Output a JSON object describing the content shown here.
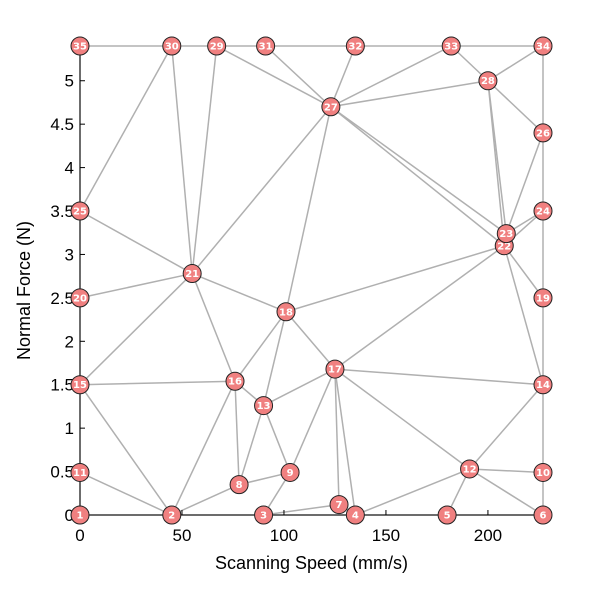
{
  "chart_data": {
    "type": "scatter",
    "title": "",
    "xlabel": "Scanning Speed (mm/s)",
    "ylabel": "Normal Force (N)",
    "xlim": [
      0,
      227
    ],
    "ylim": [
      0,
      5.4
    ],
    "xticks": [
      0,
      50,
      100,
      150,
      200
    ],
    "yticks": [
      0,
      0.5,
      1,
      1.5,
      2,
      2.5,
      3,
      3.5,
      4,
      4.5,
      5
    ],
    "xtick_labels": [
      "0",
      "50",
      "100",
      "150",
      "200"
    ],
    "ytick_labels": [
      "0",
      "0.5",
      "1",
      "1.5",
      "2",
      "2.5",
      "3",
      "3.5",
      "4",
      "4.5",
      "5"
    ],
    "grid": false,
    "node_color": "#f08080",
    "edge_color": "#b0b0b0",
    "nodes": [
      {
        "id": "1",
        "x": 0,
        "y": 0
      },
      {
        "id": "2",
        "x": 45,
        "y": 0
      },
      {
        "id": "3",
        "x": 90,
        "y": 0
      },
      {
        "id": "4",
        "x": 135,
        "y": 0
      },
      {
        "id": "5",
        "x": 180,
        "y": 0
      },
      {
        "id": "6",
        "x": 227,
        "y": 0
      },
      {
        "id": "7",
        "x": 127,
        "y": 0.12
      },
      {
        "id": "8",
        "x": 78,
        "y": 0.35
      },
      {
        "id": "9",
        "x": 103,
        "y": 0.49
      },
      {
        "id": "10",
        "x": 227,
        "y": 0.49
      },
      {
        "id": "11",
        "x": 0,
        "y": 0.49
      },
      {
        "id": "12",
        "x": 191,
        "y": 0.53
      },
      {
        "id": "13",
        "x": 90,
        "y": 1.26
      },
      {
        "id": "14",
        "x": 227,
        "y": 1.5
      },
      {
        "id": "15",
        "x": 0,
        "y": 1.5
      },
      {
        "id": "16",
        "x": 76,
        "y": 1.54
      },
      {
        "id": "17",
        "x": 125,
        "y": 1.68
      },
      {
        "id": "18",
        "x": 101,
        "y": 2.34
      },
      {
        "id": "19",
        "x": 227,
        "y": 2.5
      },
      {
        "id": "20",
        "x": 0,
        "y": 2.5
      },
      {
        "id": "21",
        "x": 55,
        "y": 2.78
      },
      {
        "id": "22",
        "x": 208,
        "y": 3.1
      },
      {
        "id": "23",
        "x": 209,
        "y": 3.24
      },
      {
        "id": "24",
        "x": 227,
        "y": 3.5
      },
      {
        "id": "25",
        "x": 0,
        "y": 3.5
      },
      {
        "id": "26",
        "x": 227,
        "y": 4.4
      },
      {
        "id": "27",
        "x": 123,
        "y": 4.7
      },
      {
        "id": "28",
        "x": 200,
        "y": 5.0
      },
      {
        "id": "29",
        "x": 67,
        "y": 5.4
      },
      {
        "id": "30",
        "x": 45,
        "y": 5.4
      },
      {
        "id": "31",
        "x": 91,
        "y": 5.4
      },
      {
        "id": "32",
        "x": 135,
        "y": 5.4
      },
      {
        "id": "33",
        "x": 182,
        "y": 5.4
      },
      {
        "id": "34",
        "x": 227,
        "y": 5.4
      },
      {
        "id": "35",
        "x": 0,
        "y": 5.4
      }
    ],
    "edges": [
      [
        "1",
        "2"
      ],
      [
        "2",
        "3"
      ],
      [
        "3",
        "4"
      ],
      [
        "4",
        "5"
      ],
      [
        "5",
        "6"
      ],
      [
        "1",
        "11"
      ],
      [
        "11",
        "15"
      ],
      [
        "15",
        "20"
      ],
      [
        "20",
        "25"
      ],
      [
        "25",
        "35"
      ],
      [
        "6",
        "10"
      ],
      [
        "10",
        "14"
      ],
      [
        "14",
        "19"
      ],
      [
        "19",
        "24"
      ],
      [
        "24",
        "26"
      ],
      [
        "26",
        "34"
      ],
      [
        "35",
        "30"
      ],
      [
        "30",
        "29"
      ],
      [
        "29",
        "31"
      ],
      [
        "31",
        "32"
      ],
      [
        "32",
        "33"
      ],
      [
        "33",
        "34"
      ],
      [
        "11",
        "2"
      ],
      [
        "15",
        "2"
      ],
      [
        "2",
        "8"
      ],
      [
        "2",
        "16"
      ],
      [
        "8",
        "9"
      ],
      [
        "9",
        "3"
      ],
      [
        "3",
        "7"
      ],
      [
        "7",
        "4"
      ],
      [
        "4",
        "12"
      ],
      [
        "12",
        "5"
      ],
      [
        "12",
        "6"
      ],
      [
        "12",
        "10"
      ],
      [
        "12",
        "14"
      ],
      [
        "12",
        "17"
      ],
      [
        "9",
        "13"
      ],
      [
        "9",
        "17"
      ],
      [
        "8",
        "13"
      ],
      [
        "8",
        "16"
      ],
      [
        "13",
        "16"
      ],
      [
        "13",
        "18"
      ],
      [
        "13",
        "17"
      ],
      [
        "16",
        "21"
      ],
      [
        "15",
        "16"
      ],
      [
        "15",
        "21"
      ],
      [
        "20",
        "21"
      ],
      [
        "25",
        "21"
      ],
      [
        "25",
        "30"
      ],
      [
        "30",
        "21"
      ],
      [
        "29",
        "21"
      ],
      [
        "21",
        "18"
      ],
      [
        "21",
        "27"
      ],
      [
        "18",
        "16"
      ],
      [
        "18",
        "17"
      ],
      [
        "18",
        "27"
      ],
      [
        "18",
        "22"
      ],
      [
        "17",
        "7"
      ],
      [
        "17",
        "4"
      ],
      [
        "17",
        "14"
      ],
      [
        "17",
        "22"
      ],
      [
        "22",
        "14"
      ],
      [
        "22",
        "19"
      ],
      [
        "22",
        "23"
      ],
      [
        "23",
        "24"
      ],
      [
        "22",
        "24"
      ],
      [
        "23",
        "26"
      ],
      [
        "23",
        "28"
      ],
      [
        "22",
        "28"
      ],
      [
        "22",
        "27"
      ],
      [
        "23",
        "27"
      ],
      [
        "27",
        "28"
      ],
      [
        "28",
        "33"
      ],
      [
        "28",
        "34"
      ],
      [
        "28",
        "26"
      ],
      [
        "27",
        "33"
      ],
      [
        "27",
        "32"
      ],
      [
        "27",
        "31"
      ],
      [
        "27",
        "29"
      ]
    ]
  }
}
